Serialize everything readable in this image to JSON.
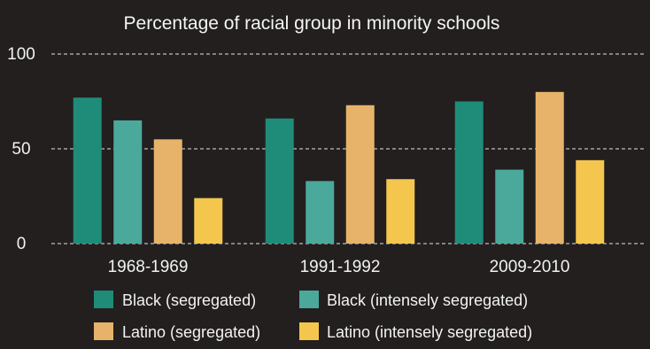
{
  "chart_data": {
    "type": "bar",
    "title": "Percentage of racial group in minority schools",
    "xlabel": "",
    "ylabel": "",
    "categories": [
      "1968-1969",
      "1991-1992",
      "2009-2010"
    ],
    "ylim": [
      0,
      100
    ],
    "yticks": [
      "0",
      "50",
      "100"
    ],
    "grid": true,
    "legend_position": "bottom",
    "series": [
      {
        "name": "Black (segregated)",
        "color": "#1f8c7a",
        "values": [
          77,
          66,
          75
        ]
      },
      {
        "name": "Black (intensely segregated)",
        "color": "#4aa99b",
        "values": [
          65,
          33,
          39
        ]
      },
      {
        "name": "Latino (segregated)",
        "color": "#e7b36b",
        "values": [
          55,
          73,
          80
        ]
      },
      {
        "name": "Latino (intensely segregated)",
        "color": "#f4c64e",
        "values": [
          24,
          34,
          44
        ]
      }
    ]
  }
}
